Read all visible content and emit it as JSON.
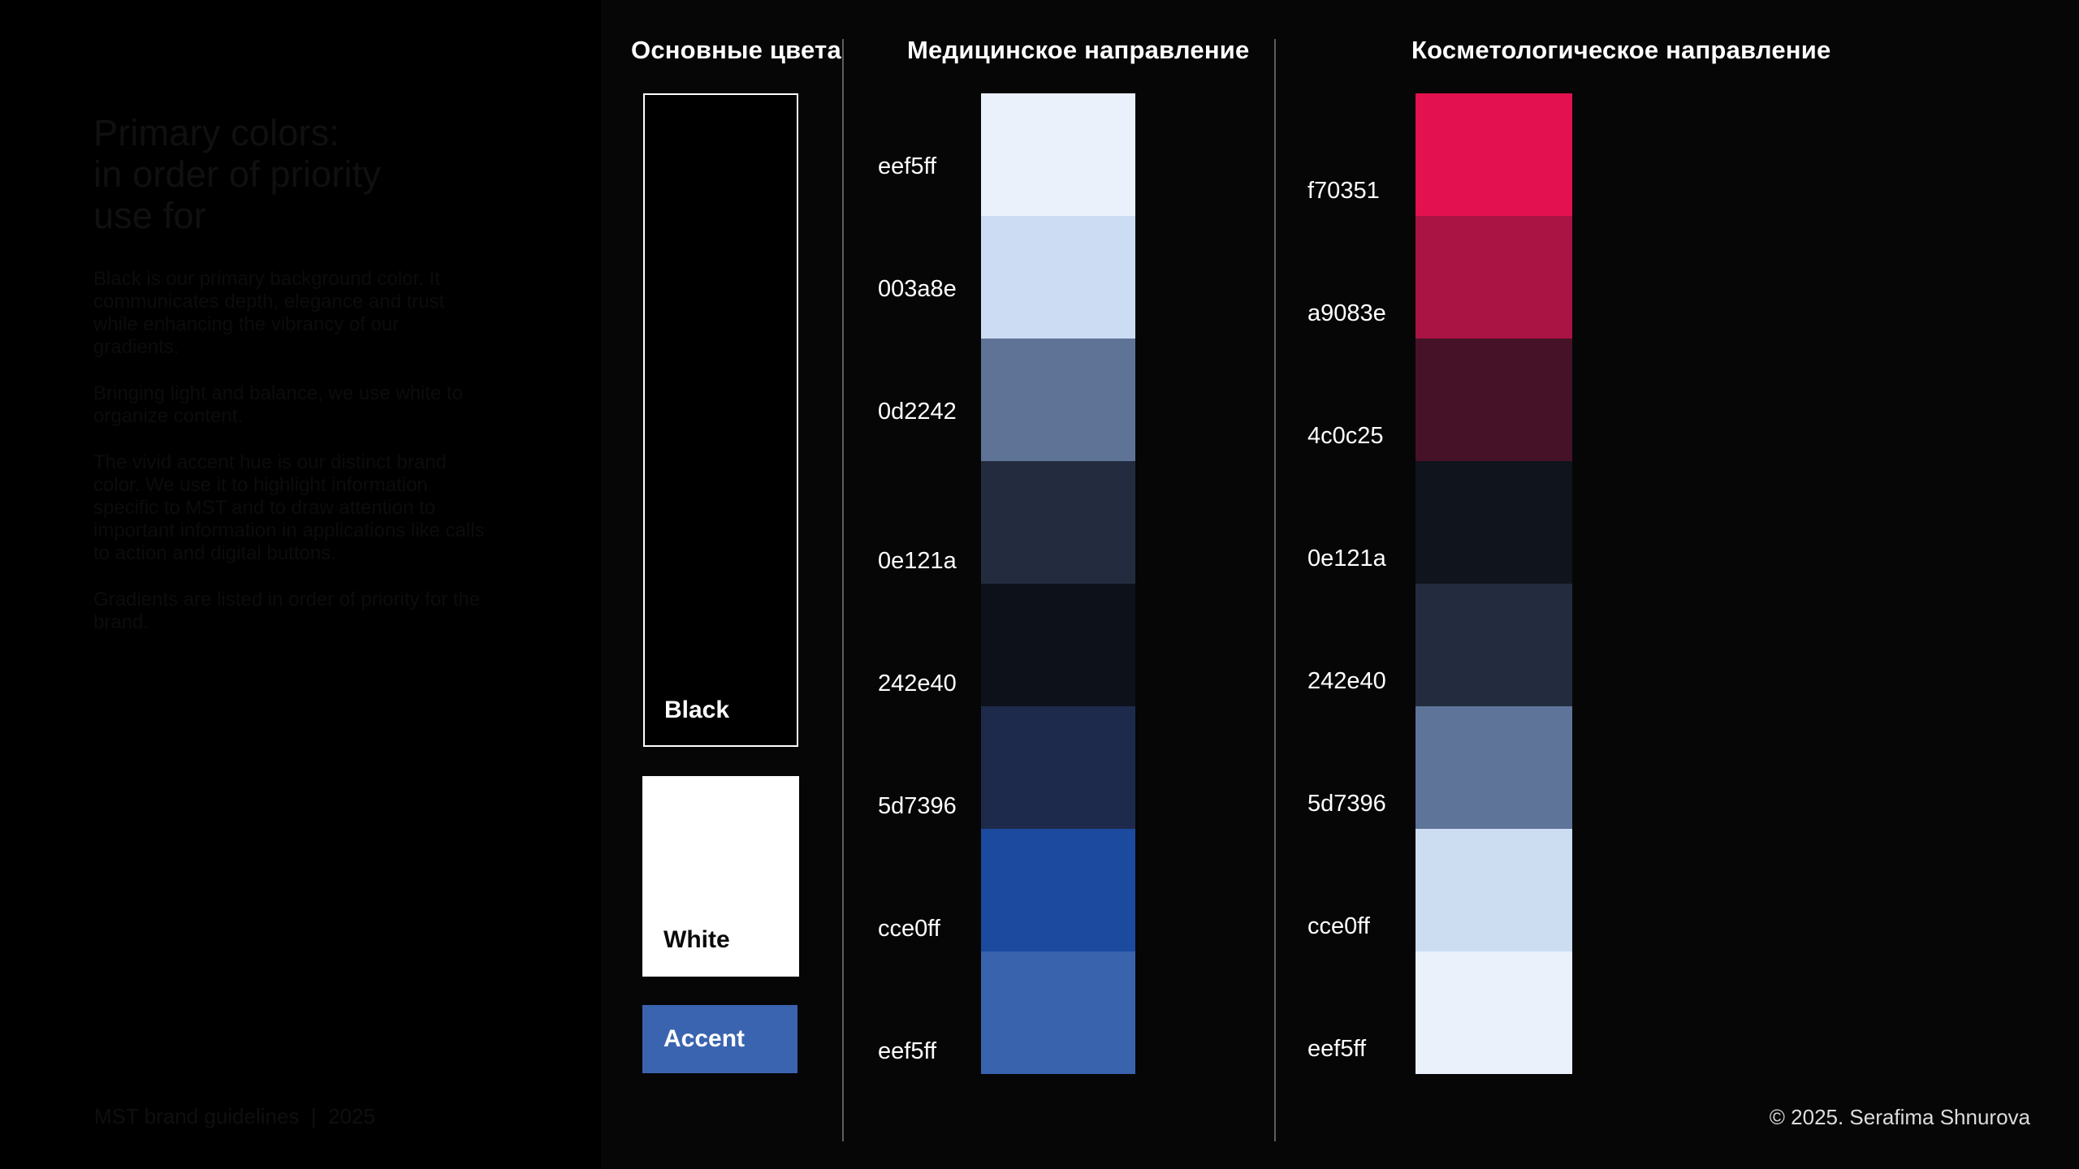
{
  "page": {
    "copyright": "© 2025. Serafima Shnurova"
  },
  "left_panel": {
    "heading_lines": [
      "Primary colors:",
      "in order of priority",
      "use for"
    ],
    "paragraphs": [
      "Black is our primary background color. It communicates depth, elegance and trust while enhancing the vibrancy of our gradients.",
      "Bringing light and balance, we use white to organize content.",
      "The vivid accent hue is our distinct brand color. We use it to highlight information specific to MST and to draw attention to important information in applications like calls to action and digital buttons.",
      "Gradients are listed in order of priority for the brand."
    ],
    "footer": "MST brand guidelines  |  2025"
  },
  "primary": {
    "title": "Основные цвета",
    "swatches": [
      {
        "label": "Black",
        "hex": "#000000"
      },
      {
        "label": "White",
        "hex": "#ffffff"
      },
      {
        "label": "Accent",
        "hex": "#3a64af"
      }
    ]
  },
  "medical": {
    "title": "Медицинское направление",
    "rows": [
      {
        "label": "eef5ff",
        "color": "#eaf1fb"
      },
      {
        "label": "003a8e",
        "color": "#ccdcf2"
      },
      {
        "label": "0d2242",
        "color": "#5e7395"
      },
      {
        "label": "0e121a",
        "color": "#232c3e"
      },
      {
        "label": "242e40",
        "color": "#0d111a"
      },
      {
        "label": "5d7396",
        "color": "#1e2a4c"
      },
      {
        "label": "cce0ff",
        "color": "#1b4a9e"
      },
      {
        "label": "eef5ff",
        "color": "#3a63ae"
      }
    ]
  },
  "cosmetology": {
    "title": "Косметологическое направление",
    "rows": [
      {
        "label": "f70351",
        "color": "#e3114f"
      },
      {
        "label": "a9083e",
        "color": "#aa1444"
      },
      {
        "label": "4c0c25",
        "color": "#461227"
      },
      {
        "label": "0e121a",
        "color": "#10141c"
      },
      {
        "label": "242e40",
        "color": "#232c3e"
      },
      {
        "label": "5d7396",
        "color": "#5f7499"
      },
      {
        "label": "cce0ff",
        "color": "#ccddf2"
      },
      {
        "label": "eef5ff",
        "color": "#eaf1fb"
      }
    ]
  }
}
